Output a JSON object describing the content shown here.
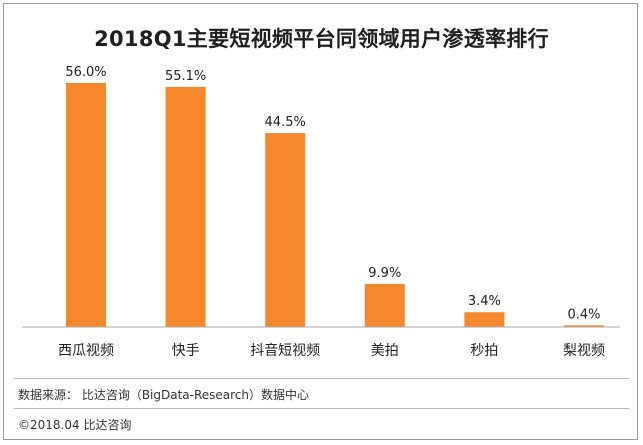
{
  "chart_data": {
    "type": "bar",
    "title": "2018Q1主要短视频平台同领域用户渗透率排行",
    "categories": [
      "西瓜视频",
      "快手",
      "抖音短视频",
      "美拍",
      "秒拍",
      "梨视频"
    ],
    "values": [
      56.0,
      55.1,
      44.5,
      9.9,
      3.4,
      0.4
    ],
    "value_labels": [
      "56.0%",
      "55.1%",
      "44.5%",
      "9.9%",
      "3.4%",
      "0.4%"
    ],
    "unit": "%",
    "ylim": [
      0,
      56.0
    ],
    "grid": false,
    "legend": "none",
    "bar_color": "#f6872b",
    "axis_color": "#aaaaaa"
  },
  "footer": {
    "source": "数据来源： 比达咨询（BigData-Research）数据中心",
    "copyright": "©2018.04   比达咨询"
  }
}
